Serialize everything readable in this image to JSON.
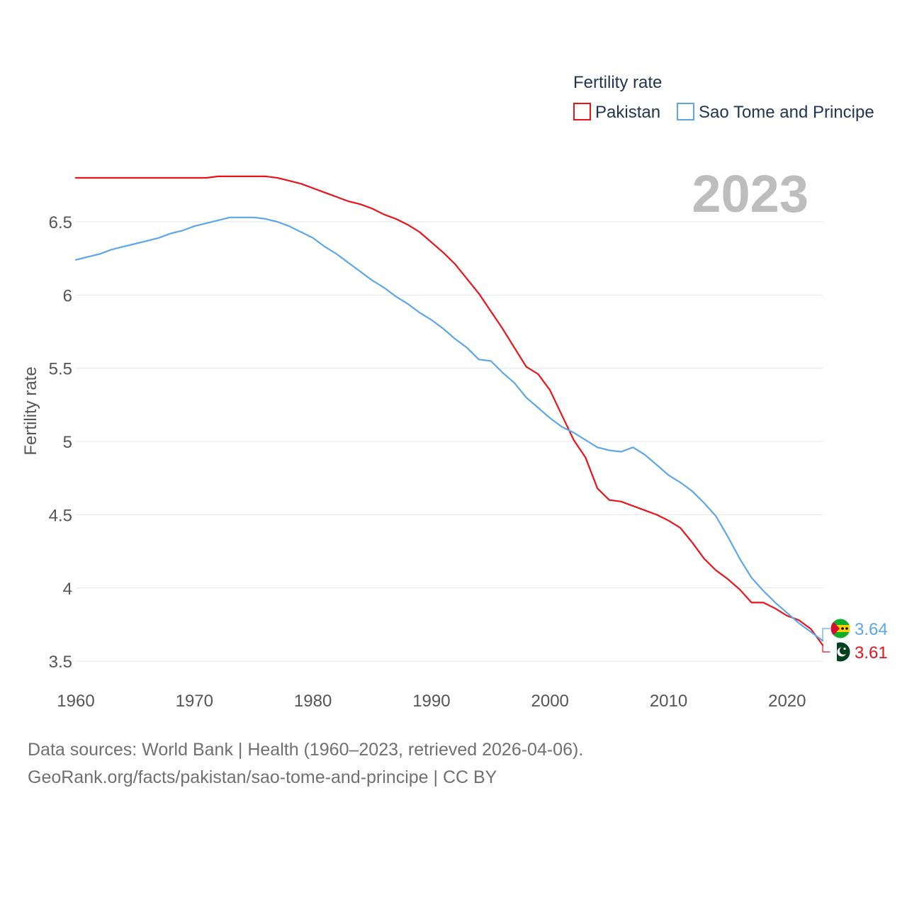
{
  "chart_data": {
    "type": "line",
    "title": "Fertility rate",
    "ylabel": "Fertility rate",
    "xlabel": "",
    "xlim": [
      1960,
      2023
    ],
    "ylim": [
      3.5,
      6.9
    ],
    "x_ticks": [
      1960,
      1970,
      1980,
      1990,
      2000,
      2010,
      2020
    ],
    "y_ticks": [
      3.5,
      4,
      4.5,
      5,
      5.5,
      6,
      6.5
    ],
    "y_tick_labels": [
      "3.5",
      "4",
      "4.5",
      "5",
      "5.5",
      "6",
      "6.5"
    ],
    "x_tick_labels": [
      "1960",
      "1970",
      "1980",
      "1990",
      "2000",
      "2010",
      "2020"
    ],
    "year_label": "2023",
    "grid": true,
    "legend_position": "top-right",
    "x": [
      1960,
      1961,
      1962,
      1963,
      1964,
      1965,
      1966,
      1967,
      1968,
      1969,
      1970,
      1971,
      1972,
      1973,
      1974,
      1975,
      1976,
      1977,
      1978,
      1979,
      1980,
      1981,
      1982,
      1983,
      1984,
      1985,
      1986,
      1987,
      1988,
      1989,
      1990,
      1991,
      1992,
      1993,
      1994,
      1995,
      1996,
      1997,
      1998,
      1999,
      2000,
      2001,
      2002,
      2003,
      2004,
      2005,
      2006,
      2007,
      2008,
      2009,
      2010,
      2011,
      2012,
      2013,
      2014,
      2015,
      2016,
      2017,
      2018,
      2019,
      2020,
      2021,
      2022,
      2023
    ],
    "series": [
      {
        "name": "Pakistan",
        "color": "#e8141a",
        "end_label": "3.61",
        "flag": "pakistan-flag",
        "values": [
          6.8,
          6.8,
          6.8,
          6.8,
          6.8,
          6.8,
          6.8,
          6.8,
          6.8,
          6.8,
          6.8,
          6.8,
          6.81,
          6.81,
          6.81,
          6.81,
          6.81,
          6.8,
          6.78,
          6.76,
          6.73,
          6.7,
          6.67,
          6.64,
          6.62,
          6.59,
          6.55,
          6.52,
          6.48,
          6.43,
          6.36,
          6.29,
          6.21,
          6.11,
          6.01,
          5.89,
          5.77,
          5.64,
          5.51,
          5.46,
          5.35,
          5.18,
          5.01,
          4.89,
          4.68,
          4.6,
          4.59,
          4.56,
          4.53,
          4.5,
          4.46,
          4.41,
          4.31,
          4.2,
          4.12,
          4.06,
          3.99,
          3.9,
          3.9,
          3.86,
          3.81,
          3.78,
          3.72,
          3.61
        ]
      },
      {
        "name": "Sao Tome and Principe",
        "color": "#5da6e8",
        "end_label": "3.64",
        "flag": "sao-tome-flag",
        "values": [
          6.24,
          6.26,
          6.28,
          6.31,
          6.33,
          6.35,
          6.37,
          6.39,
          6.42,
          6.44,
          6.47,
          6.49,
          6.51,
          6.53,
          6.53,
          6.53,
          6.52,
          6.5,
          6.47,
          6.43,
          6.39,
          6.33,
          6.28,
          6.22,
          6.16,
          6.1,
          6.05,
          5.99,
          5.94,
          5.88,
          5.83,
          5.77,
          5.7,
          5.64,
          5.56,
          5.55,
          5.47,
          5.4,
          5.3,
          5.23,
          5.16,
          5.1,
          5.06,
          5.01,
          4.96,
          4.94,
          4.93,
          4.96,
          4.91,
          4.84,
          4.77,
          4.72,
          4.66,
          4.58,
          4.49,
          4.35,
          4.2,
          4.07,
          3.98,
          3.9,
          3.83,
          3.76,
          3.7,
          3.64
        ]
      }
    ]
  },
  "footer": {
    "line1": "Data sources: World Bank | Health (1960–2023, retrieved 2026-04-06).",
    "line2": "GeoRank.org/facts/pakistan/sao-tome-and-principe | CC BY"
  }
}
